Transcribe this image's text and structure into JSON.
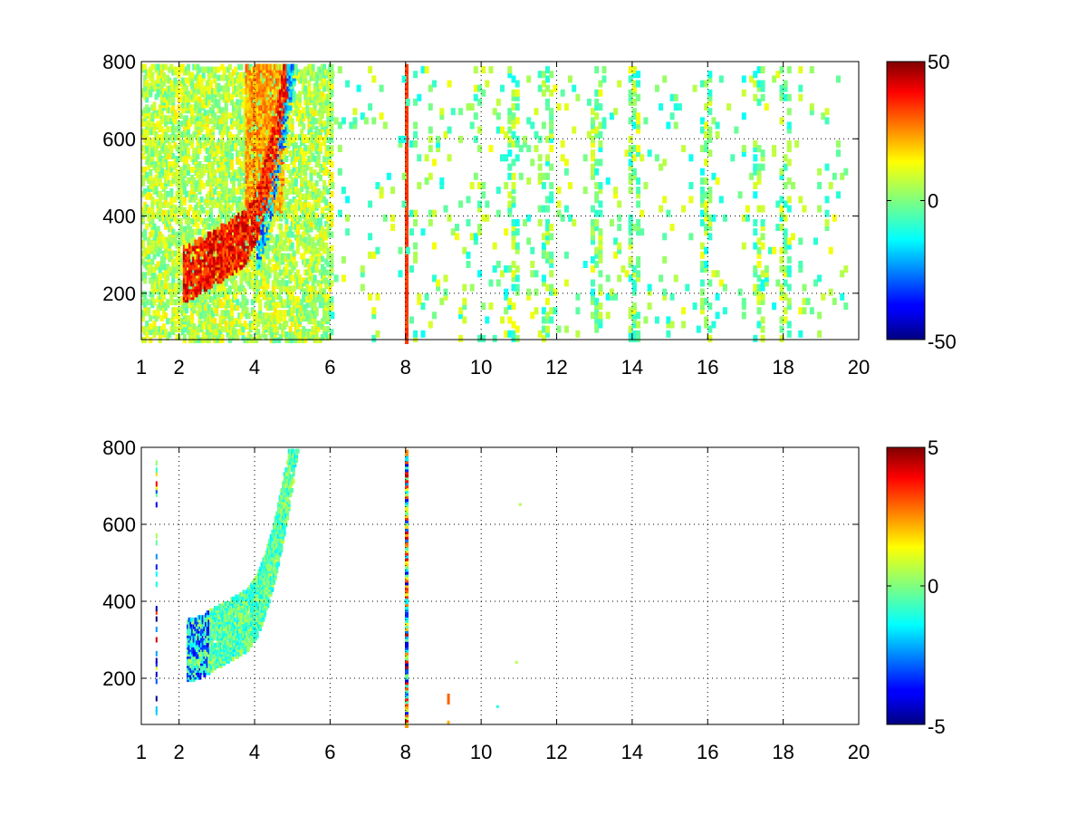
{
  "chart_data": [
    {
      "type": "heatmap",
      "title": "",
      "xlabel": "",
      "ylabel": "",
      "xlim": [
        1,
        20
      ],
      "ylim": [
        80,
        800
      ],
      "xticks": [
        "1",
        "2",
        "4",
        "6",
        "8",
        "10",
        "12",
        "14",
        "16",
        "18",
        "20"
      ],
      "xtick_values": [
        1,
        2,
        4,
        6,
        8,
        10,
        12,
        14,
        16,
        18,
        20
      ],
      "yticks": [
        "200",
        "400",
        "600",
        "800"
      ],
      "ytick_values": [
        200,
        400,
        600,
        800
      ],
      "grid": true,
      "grid_style": "dotted",
      "colormap": "jet",
      "clim": [
        -50,
        50
      ],
      "colorbar_ticks": [
        "-50",
        "0",
        "50"
      ],
      "colorbar_tick_values": [
        -50,
        0,
        50
      ],
      "features": [
        {
          "kind": "band",
          "x": [
            2.0,
            4.5
          ],
          "y": [
            200,
            800
          ],
          "from_y": [
            280,
            420
          ],
          "to_y": [
            800,
            800
          ],
          "value": 35,
          "description_level": "high"
        },
        {
          "kind": "band",
          "x": [
            4.2,
            5.8
          ],
          "y": [
            250,
            600
          ],
          "value": -30
        },
        {
          "kind": "column",
          "x": 8,
          "value": 30
        },
        {
          "kind": "scatter",
          "x": [
            6,
            20
          ],
          "value_range": [
            -10,
            10
          ]
        }
      ]
    },
    {
      "type": "heatmap",
      "title": "",
      "xlabel": "",
      "ylabel": "",
      "xlim": [
        1,
        20
      ],
      "ylim": [
        80,
        800
      ],
      "xticks": [
        "1",
        "2",
        "4",
        "6",
        "8",
        "10",
        "12",
        "14",
        "16",
        "18",
        "20"
      ],
      "xtick_values": [
        1,
        2,
        4,
        6,
        8,
        10,
        12,
        14,
        16,
        18,
        20
      ],
      "yticks": [
        "200",
        "400",
        "600",
        "800"
      ],
      "ytick_values": [
        200,
        400,
        600,
        800
      ],
      "grid": true,
      "grid_style": "dotted",
      "colormap": "jet",
      "clim": [
        -5,
        5
      ],
      "colorbar_ticks": [
        "-5",
        "0",
        "5"
      ],
      "colorbar_tick_values": [
        -5,
        0,
        5
      ],
      "features": [
        {
          "kind": "band",
          "x": [
            2.2,
            5.8
          ],
          "y": [
            180,
            800
          ],
          "value": -0.5
        },
        {
          "kind": "column",
          "x": 8,
          "value_range": [
            -5,
            5
          ]
        },
        {
          "kind": "column",
          "x": 1.4,
          "y": [
            100,
            780
          ],
          "value_range": [
            -5,
            5
          ]
        }
      ]
    }
  ]
}
